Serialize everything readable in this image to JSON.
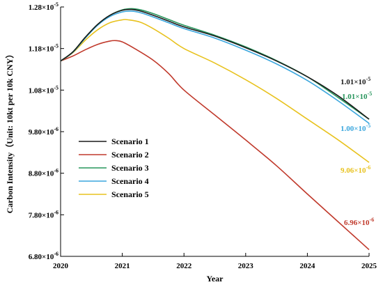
{
  "chart_data": {
    "type": "line",
    "title": "",
    "xlabel": "Year",
    "ylabel": "Carbon Intensity（Unit: 10kt per 10k CNY）",
    "xlim": [
      2020,
      2025
    ],
    "ylim": [
      6.8e-06,
      1.28e-05
    ],
    "grid": false,
    "legend_position": "center-left",
    "x_ticks": [
      2020,
      2021,
      2022,
      2023,
      2024,
      2025
    ],
    "x_tick_labels": [
      "2020",
      "2021",
      "2022",
      "2023",
      "2024",
      "2025"
    ],
    "y_ticks": [
      6.8e-06,
      7.8e-06,
      8.8e-06,
      9.8e-06,
      1.08e-05,
      1.18e-05,
      1.28e-05
    ],
    "y_tick_labels": [
      {
        "base": "6.80×10",
        "exp": "-6"
      },
      {
        "base": "7.80×10",
        "exp": "-6"
      },
      {
        "base": "8.80×10",
        "exp": "-6"
      },
      {
        "base": "9.80×10",
        "exp": "-6"
      },
      {
        "base": "1.08×10",
        "exp": "-5"
      },
      {
        "base": "1.18×10",
        "exp": "-5"
      },
      {
        "base": "1.28×10",
        "exp": "-5"
      }
    ],
    "series": [
      {
        "name": "Scenario 1",
        "color": "#1a1a1a",
        "x": [
          2020,
          2020.2,
          2020.4,
          2020.6,
          2020.8,
          2021,
          2021.15,
          2021.3,
          2021.5,
          2021.75,
          2022,
          2022.5,
          2023,
          2023.5,
          2024,
          2024.5,
          2025
        ],
        "y": [
          1.15e-05,
          1.172e-05,
          1.207e-05,
          1.238e-05,
          1.26e-05,
          1.272e-05,
          1.274e-05,
          1.27e-05,
          1.26e-05,
          1.246e-05,
          1.232e-05,
          1.21e-05,
          1.182e-05,
          1.15e-05,
          1.112e-05,
          1.066e-05,
          1.01e-05
        ]
      },
      {
        "name": "Scenario 2",
        "color": "#c0392b",
        "x": [
          2020,
          2020.2,
          2020.4,
          2020.6,
          2020.8,
          2020.9,
          2021,
          2021.2,
          2021.5,
          2021.75,
          2022,
          2022.5,
          2023,
          2023.5,
          2024,
          2024.5,
          2025
        ],
        "y": [
          1.15e-05,
          1.162e-05,
          1.177e-05,
          1.19e-05,
          1.198e-05,
          1.199e-05,
          1.196e-05,
          1.18e-05,
          1.152e-05,
          1.12e-05,
          1.08e-05,
          1.02e-05,
          9.6e-06,
          8.98e-06,
          8.3e-06,
          7.63e-06,
          6.96e-06
        ]
      },
      {
        "name": "Scenario 3",
        "color": "#27955c",
        "x": [
          2020,
          2020.2,
          2020.4,
          2020.6,
          2020.8,
          2021,
          2021.15,
          2021.3,
          2021.5,
          2021.75,
          2022,
          2022.5,
          2023,
          2023.5,
          2024,
          2024.5,
          2025
        ],
        "y": [
          1.15e-05,
          1.172e-05,
          1.207e-05,
          1.238e-05,
          1.26e-05,
          1.273e-05,
          1.276e-05,
          1.273e-05,
          1.264e-05,
          1.25e-05,
          1.236e-05,
          1.212e-05,
          1.184e-05,
          1.151e-05,
          1.112e-05,
          1.062e-05,
          1.01e-05
        ]
      },
      {
        "name": "Scenario 4",
        "color": "#3aa6dd",
        "x": [
          2020,
          2020.2,
          2020.4,
          2020.6,
          2020.8,
          2021,
          2021.15,
          2021.3,
          2021.5,
          2021.75,
          2022,
          2022.5,
          2023,
          2023.5,
          2024,
          2024.5,
          2025
        ],
        "y": [
          1.15e-05,
          1.171e-05,
          1.205e-05,
          1.236e-05,
          1.257e-05,
          1.268e-05,
          1.27e-05,
          1.266e-05,
          1.256e-05,
          1.242e-05,
          1.228e-05,
          1.205e-05,
          1.176e-05,
          1.143e-05,
          1.103e-05,
          1.054e-05,
          1e-05
        ]
      },
      {
        "name": "Scenario 5",
        "color": "#e8c21e",
        "x": [
          2020,
          2020.2,
          2020.4,
          2020.6,
          2020.8,
          2021,
          2021.1,
          2021.3,
          2021.5,
          2021.75,
          2022,
          2022.5,
          2023,
          2023.5,
          2024,
          2024.5,
          2025
        ],
        "y": [
          1.15e-05,
          1.17e-05,
          1.2e-05,
          1.225e-05,
          1.242e-05,
          1.249e-05,
          1.249e-05,
          1.243e-05,
          1.228e-05,
          1.205e-05,
          1.18e-05,
          1.145e-05,
          1.105e-05,
          1.06e-05,
          1.01e-05,
          9.6e-06,
          9.06e-06
        ]
      }
    ],
    "end_labels": [
      {
        "series": 0,
        "base": "1.01×10",
        "exp": "-5",
        "color": "#1a1a1a"
      },
      {
        "series": 2,
        "base": "1.01×10",
        "exp": "-5",
        "color": "#27955c"
      },
      {
        "series": 3,
        "base": "1.00×10",
        "exp": "-5",
        "color": "#3aa6dd"
      },
      {
        "series": 4,
        "base": "9.06×10",
        "exp": "-6",
        "color": "#e8c21e"
      },
      {
        "series": 1,
        "base": "6.96×10",
        "exp": "-6",
        "color": "#c0392b"
      }
    ]
  }
}
